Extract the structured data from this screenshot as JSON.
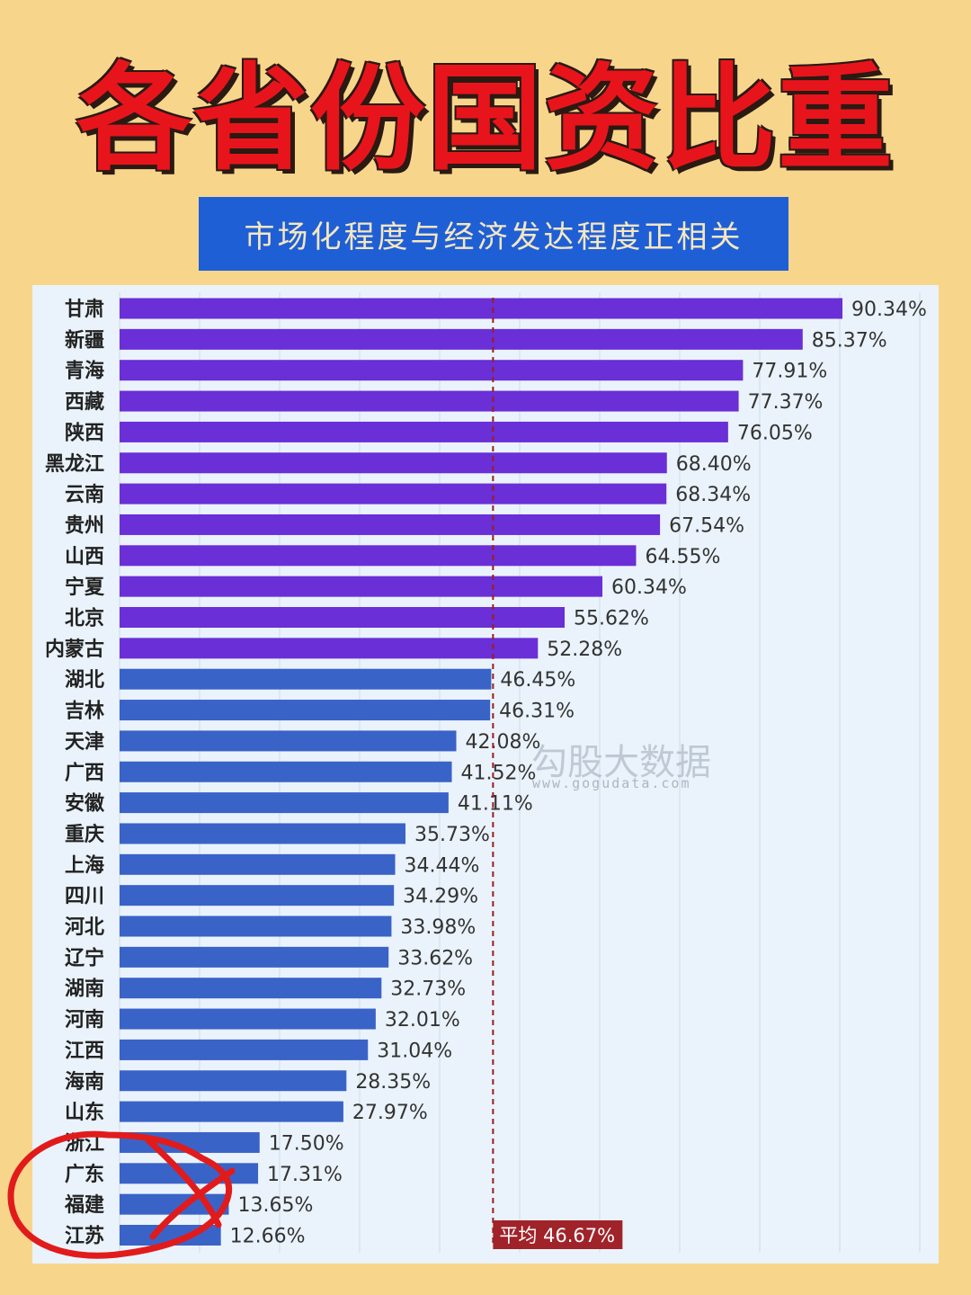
{
  "header": {
    "title": "各省份国资比重",
    "subtitle": "市场化程度与经济发达程度正相关"
  },
  "watermark": {
    "brand": "勾股大数据",
    "url": "www.gogudata.com"
  },
  "colors": {
    "bar_purple": "#6a2fd6",
    "bar_blue": "#3a63c8",
    "average_line": "#9b1d1d",
    "average_label_bg": "#a0232a",
    "annotation": "#e11b1b"
  },
  "chart_data": {
    "type": "bar",
    "orientation": "horizontal",
    "categories": [
      "甘肃",
      "新疆",
      "青海",
      "西藏",
      "陕西",
      "黑龙江",
      "云南",
      "贵州",
      "山西",
      "宁夏",
      "北京",
      "内蒙古",
      "湖北",
      "吉林",
      "天津",
      "广西",
      "安徽",
      "重庆",
      "上海",
      "四川",
      "河北",
      "辽宁",
      "湖南",
      "河南",
      "江西",
      "海南",
      "山东",
      "浙江",
      "广东",
      "福建",
      "江苏"
    ],
    "values": [
      90.34,
      85.37,
      77.91,
      77.37,
      76.05,
      68.4,
      68.34,
      67.54,
      64.55,
      60.34,
      55.62,
      52.28,
      46.45,
      46.31,
      42.08,
      41.52,
      41.11,
      35.73,
      34.44,
      34.29,
      33.98,
      33.62,
      32.73,
      32.01,
      31.04,
      28.35,
      27.97,
      17.5,
      17.31,
      13.65,
      12.66
    ],
    "value_labels": [
      "90.34%",
      "85.37%",
      "77.91%",
      "77.37%",
      "76.05%",
      "68.40%",
      "68.34%",
      "67.54%",
      "64.55%",
      "60.34%",
      "55.62%",
      "52.28%",
      "46.45%",
      "46.31%",
      "42.08%",
      "41.52%",
      "41.11%",
      "35.73%",
      "34.44%",
      "34.29%",
      "33.98%",
      "33.62%",
      "32.73%",
      "32.01%",
      "31.04%",
      "28.35%",
      "27.97%",
      "17.50%",
      "17.31%",
      "13.65%",
      "12.66%"
    ],
    "xlim": [
      0,
      100
    ],
    "grid": true,
    "average": {
      "value": 46.67,
      "label": "平均 46.67%"
    }
  }
}
